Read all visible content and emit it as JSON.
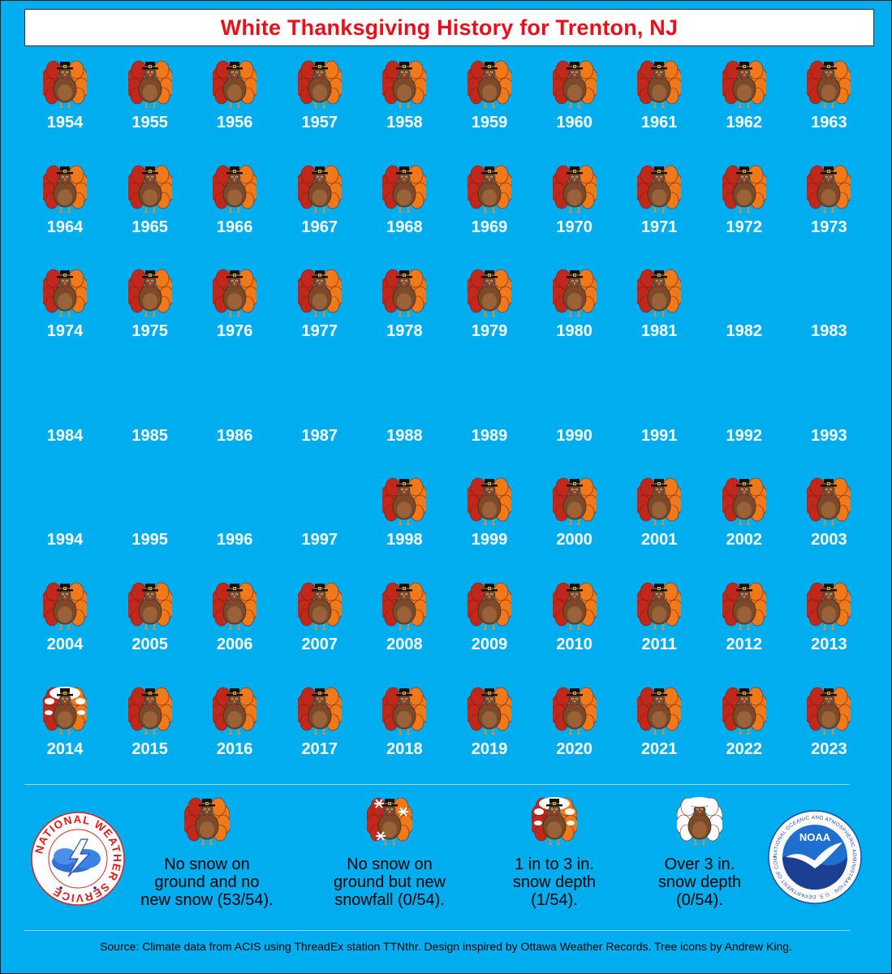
{
  "title": "White Thanksgiving History for Trenton, NJ",
  "chart_data": {
    "type": "table",
    "category_codes": {
      "0": "No snow on ground and no new snow",
      "1": "No snow on ground but new snowfall",
      "2": "1 in to 3 in. snow depth",
      "3": "Over 3 in. snow depth",
      "none": "no icon shown"
    },
    "years": [
      {
        "year": "1954",
        "category": 0
      },
      {
        "year": "1955",
        "category": 0
      },
      {
        "year": "1956",
        "category": 0
      },
      {
        "year": "1957",
        "category": 0
      },
      {
        "year": "1958",
        "category": 0
      },
      {
        "year": "1959",
        "category": 0
      },
      {
        "year": "1960",
        "category": 0
      },
      {
        "year": "1961",
        "category": 0
      },
      {
        "year": "1962",
        "category": 0
      },
      {
        "year": "1963",
        "category": 0
      },
      {
        "year": "1964",
        "category": 0
      },
      {
        "year": "1965",
        "category": 0
      },
      {
        "year": "1966",
        "category": 0
      },
      {
        "year": "1967",
        "category": 0
      },
      {
        "year": "1968",
        "category": 0
      },
      {
        "year": "1969",
        "category": 0
      },
      {
        "year": "1970",
        "category": 0
      },
      {
        "year": "1971",
        "category": 0
      },
      {
        "year": "1972",
        "category": 0
      },
      {
        "year": "1973",
        "category": 0
      },
      {
        "year": "1974",
        "category": 0
      },
      {
        "year": "1975",
        "category": 0
      },
      {
        "year": "1976",
        "category": 0
      },
      {
        "year": "1977",
        "category": 0
      },
      {
        "year": "1978",
        "category": 0
      },
      {
        "year": "1979",
        "category": 0
      },
      {
        "year": "1980",
        "category": 0
      },
      {
        "year": "1981",
        "category": 0
      },
      {
        "year": "1982",
        "category": null
      },
      {
        "year": "1983",
        "category": null
      },
      {
        "year": "1984",
        "category": null
      },
      {
        "year": "1985",
        "category": null
      },
      {
        "year": "1986",
        "category": null
      },
      {
        "year": "1987",
        "category": null
      },
      {
        "year": "1988",
        "category": null
      },
      {
        "year": "1989",
        "category": null
      },
      {
        "year": "1990",
        "category": null
      },
      {
        "year": "1991",
        "category": null
      },
      {
        "year": "1992",
        "category": null
      },
      {
        "year": "1993",
        "category": null
      },
      {
        "year": "1994",
        "category": null
      },
      {
        "year": "1995",
        "category": null
      },
      {
        "year": "1996",
        "category": null
      },
      {
        "year": "1997",
        "category": null
      },
      {
        "year": "1998",
        "category": 0
      },
      {
        "year": "1999",
        "category": 0
      },
      {
        "year": "2000",
        "category": 0
      },
      {
        "year": "2001",
        "category": 0
      },
      {
        "year": "2002",
        "category": 0
      },
      {
        "year": "2003",
        "category": 0
      },
      {
        "year": "2004",
        "category": 0
      },
      {
        "year": "2005",
        "category": 0
      },
      {
        "year": "2006",
        "category": 0
      },
      {
        "year": "2007",
        "category": 0
      },
      {
        "year": "2008",
        "category": 0
      },
      {
        "year": "2009",
        "category": 0
      },
      {
        "year": "2010",
        "category": 0
      },
      {
        "year": "2011",
        "category": 0
      },
      {
        "year": "2012",
        "category": 0
      },
      {
        "year": "2013",
        "category": 0
      },
      {
        "year": "2014",
        "category": 2
      },
      {
        "year": "2015",
        "category": 0
      },
      {
        "year": "2016",
        "category": 0
      },
      {
        "year": "2017",
        "category": 0
      },
      {
        "year": "2018",
        "category": 0
      },
      {
        "year": "2019",
        "category": 0
      },
      {
        "year": "2020",
        "category": 0
      },
      {
        "year": "2021",
        "category": 0
      },
      {
        "year": "2022",
        "category": 0
      },
      {
        "year": "2023",
        "category": 0
      }
    ]
  },
  "legend": [
    {
      "text_lines": [
        "No snow on",
        "ground and no",
        "new snow (53/54)."
      ],
      "icon": "turkey-icon"
    },
    {
      "text_lines": [
        "No snow on",
        "ground but new",
        "snowfall (0/54)."
      ],
      "icon": "turkey-snowflake-icon"
    },
    {
      "text_lines": [
        "1 in to 3 in.",
        "snow depth",
        "(1/54)."
      ],
      "icon": "turkey-light-snow-icon"
    },
    {
      "text_lines": [
        "Over 3 in.",
        "snow depth",
        "(0/54)."
      ],
      "icon": "turkey-heavy-snow-icon"
    }
  ],
  "logos": {
    "nws_text": "NATIONAL WEATHER SERVICE",
    "noaa_center": "NOAA",
    "noaa_ring_text": "NATIONAL OCEANIC AND ATMOSPHERIC ADMINISTRATION · U.S. DEPARTMENT OF COMMERCE"
  },
  "source": "Source: Climate data from ACIS using ThreadEx station TTNthr. Design inspired by Ottawa Weather Records. Tree icons by Andrew King.",
  "colors": {
    "background": "#00aeef",
    "title": "#e8101a",
    "year_label": "#ffffff",
    "turkey_body": "#7a4a2a",
    "feather_red": "#c0281b",
    "feather_orange": "#f07a1a",
    "snow": "#ffffff"
  }
}
